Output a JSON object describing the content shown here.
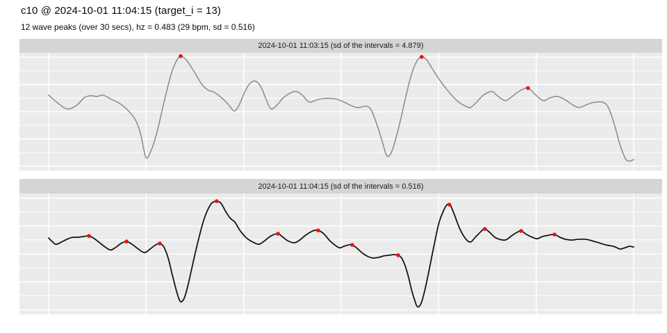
{
  "header": {
    "title": "c10 @ 2024-10-01 11:04:15 (target_i = 13)",
    "subtitle": "12 wave peaks (over 30 secs), hz = 0.483 (29 bpm, sd = 0.516)"
  },
  "colors": {
    "panel_bg": "#ebebeb",
    "strip_bg": "#d5d5d5",
    "grid": "#ffffff",
    "peak_dot": "#ed1111",
    "series_top": "#8f8f8f",
    "series_bottom": "#141414"
  },
  "chart_data": [
    {
      "type": "line",
      "title": "2024-10-01 11:03:15 (sd of the intervals = 4.879)",
      "xlabel": "",
      "ylabel": "",
      "x_unit": "seconds",
      "xlim": [
        0,
        30
      ],
      "ylim": [
        0,
        1
      ],
      "grid": true,
      "legend": false,
      "line_color_key": "series_top",
      "points": [
        [
          0,
          0.641
        ],
        [
          0.36,
          0.588
        ],
        [
          0.93,
          0.524
        ],
        [
          1.43,
          0.553
        ],
        [
          1.82,
          0.618
        ],
        [
          2.14,
          0.635
        ],
        [
          2.49,
          0.629
        ],
        [
          2.78,
          0.641
        ],
        [
          3.21,
          0.606
        ],
        [
          3.63,
          0.571
        ],
        [
          4.1,
          0.506
        ],
        [
          4.49,
          0.418
        ],
        [
          4.74,
          0.294
        ],
        [
          4.99,
          0.112
        ],
        [
          5.27,
          0.176
        ],
        [
          5.56,
          0.329
        ],
        [
          5.91,
          0.576
        ],
        [
          6.27,
          0.812
        ],
        [
          6.55,
          0.929
        ],
        [
          6.77,
          0.971
        ],
        [
          7.05,
          0.941
        ],
        [
          7.41,
          0.853
        ],
        [
          7.87,
          0.729
        ],
        [
          8.19,
          0.682
        ],
        [
          8.48,
          0.665
        ],
        [
          8.91,
          0.612
        ],
        [
          9.26,
          0.553
        ],
        [
          9.51,
          0.506
        ],
        [
          9.76,
          0.553
        ],
        [
          10.05,
          0.665
        ],
        [
          10.33,
          0.741
        ],
        [
          10.62,
          0.759
        ],
        [
          10.9,
          0.706
        ],
        [
          11.15,
          0.606
        ],
        [
          11.4,
          0.524
        ],
        [
          11.69,
          0.553
        ],
        [
          12.04,
          0.618
        ],
        [
          12.4,
          0.659
        ],
        [
          12.72,
          0.671
        ],
        [
          13.04,
          0.635
        ],
        [
          13.36,
          0.582
        ],
        [
          13.75,
          0.6
        ],
        [
          14.11,
          0.612
        ],
        [
          14.46,
          0.612
        ],
        [
          14.79,
          0.606
        ],
        [
          15.14,
          0.582
        ],
        [
          15.5,
          0.553
        ],
        [
          15.85,
          0.535
        ],
        [
          16.07,
          0.541
        ],
        [
          16.32,
          0.547
        ],
        [
          16.53,
          0.518
        ],
        [
          16.74,
          0.435
        ],
        [
          16.99,
          0.312
        ],
        [
          17.21,
          0.188
        ],
        [
          17.35,
          0.124
        ],
        [
          17.53,
          0.141
        ],
        [
          17.74,
          0.235
        ],
        [
          18.03,
          0.418
        ],
        [
          18.31,
          0.624
        ],
        [
          18.6,
          0.812
        ],
        [
          18.88,
          0.929
        ],
        [
          19.13,
          0.965
        ],
        [
          19.38,
          0.941
        ],
        [
          19.67,
          0.865
        ],
        [
          20.02,
          0.776
        ],
        [
          20.31,
          0.712
        ],
        [
          20.66,
          0.641
        ],
        [
          21.02,
          0.582
        ],
        [
          21.38,
          0.547
        ],
        [
          21.63,
          0.535
        ],
        [
          21.95,
          0.582
        ],
        [
          22.3,
          0.641
        ],
        [
          22.73,
          0.671
        ],
        [
          23.01,
          0.635
        ],
        [
          23.41,
          0.594
        ],
        [
          23.73,
          0.624
        ],
        [
          24.15,
          0.676
        ],
        [
          24.58,
          0.7
        ],
        [
          24.94,
          0.647
        ],
        [
          25.36,
          0.594
        ],
        [
          25.72,
          0.618
        ],
        [
          26.11,
          0.629
        ],
        [
          26.5,
          0.6
        ],
        [
          26.86,
          0.559
        ],
        [
          27.18,
          0.535
        ],
        [
          27.5,
          0.553
        ],
        [
          27.86,
          0.576
        ],
        [
          28.14,
          0.582
        ],
        [
          28.39,
          0.582
        ],
        [
          28.64,
          0.553
        ],
        [
          28.86,
          0.471
        ],
        [
          29.07,
          0.359
        ],
        [
          29.28,
          0.229
        ],
        [
          29.5,
          0.129
        ],
        [
          29.64,
          0.088
        ],
        [
          29.82,
          0.082
        ],
        [
          30,
          0.094
        ]
      ],
      "peaks": [
        [
          6.77,
          0.971
        ],
        [
          19.13,
          0.965
        ],
        [
          24.58,
          0.7
        ]
      ]
    },
    {
      "type": "line",
      "title": "2024-10-01 11:04:15 (sd of the intervals = 0.516)",
      "xlabel": "",
      "ylabel": "",
      "x_unit": "seconds",
      "xlim": [
        0,
        30
      ],
      "ylim": [
        0,
        1
      ],
      "grid": true,
      "legend": false,
      "line_color_key": "series_bottom",
      "points": [
        [
          0,
          0.632
        ],
        [
          0.18,
          0.603
        ],
        [
          0.39,
          0.58
        ],
        [
          0.71,
          0.603
        ],
        [
          1,
          0.626
        ],
        [
          1.25,
          0.638
        ],
        [
          1.5,
          0.638
        ],
        [
          1.78,
          0.644
        ],
        [
          2.07,
          0.649
        ],
        [
          2.35,
          0.626
        ],
        [
          2.71,
          0.58
        ],
        [
          3.14,
          0.534
        ],
        [
          3.42,
          0.552
        ],
        [
          3.71,
          0.586
        ],
        [
          3.99,
          0.603
        ],
        [
          4.28,
          0.58
        ],
        [
          4.6,
          0.54
        ],
        [
          4.92,
          0.511
        ],
        [
          5.2,
          0.54
        ],
        [
          5.49,
          0.575
        ],
        [
          5.7,
          0.586
        ],
        [
          5.91,
          0.557
        ],
        [
          6.13,
          0.466
        ],
        [
          6.34,
          0.328
        ],
        [
          6.56,
          0.19
        ],
        [
          6.7,
          0.121
        ],
        [
          6.8,
          0.103
        ],
        [
          6.95,
          0.132
        ],
        [
          7.13,
          0.23
        ],
        [
          7.37,
          0.402
        ],
        [
          7.66,
          0.603
        ],
        [
          7.98,
          0.793
        ],
        [
          8.3,
          0.908
        ],
        [
          8.55,
          0.937
        ],
        [
          8.66,
          0.934
        ],
        [
          8.84,
          0.92
        ],
        [
          9.08,
          0.851
        ],
        [
          9.33,
          0.793
        ],
        [
          9.55,
          0.764
        ],
        [
          9.83,
          0.69
        ],
        [
          10.19,
          0.626
        ],
        [
          10.55,
          0.592
        ],
        [
          10.79,
          0.58
        ],
        [
          11.08,
          0.609
        ],
        [
          11.4,
          0.649
        ],
        [
          11.76,
          0.667
        ],
        [
          11.97,
          0.644
        ],
        [
          12.26,
          0.609
        ],
        [
          12.58,
          0.592
        ],
        [
          12.83,
          0.609
        ],
        [
          13.18,
          0.655
        ],
        [
          13.54,
          0.69
        ],
        [
          13.82,
          0.695
        ],
        [
          14.11,
          0.667
        ],
        [
          14.46,
          0.603
        ],
        [
          14.89,
          0.552
        ],
        [
          15.14,
          0.563
        ],
        [
          15.39,
          0.575
        ],
        [
          15.57,
          0.575
        ],
        [
          15.82,
          0.546
        ],
        [
          16.1,
          0.506
        ],
        [
          16.39,
          0.477
        ],
        [
          16.64,
          0.466
        ],
        [
          16.92,
          0.471
        ],
        [
          17.17,
          0.483
        ],
        [
          17.46,
          0.489
        ],
        [
          17.71,
          0.494
        ],
        [
          17.92,
          0.489
        ],
        [
          18.1,
          0.466
        ],
        [
          18.28,
          0.402
        ],
        [
          18.46,
          0.305
        ],
        [
          18.63,
          0.19
        ],
        [
          18.81,
          0.098
        ],
        [
          18.88,
          0.069
        ],
        [
          18.99,
          0.063
        ],
        [
          19.13,
          0.103
        ],
        [
          19.31,
          0.213
        ],
        [
          19.52,
          0.374
        ],
        [
          19.77,
          0.575
        ],
        [
          20.02,
          0.759
        ],
        [
          20.31,
          0.879
        ],
        [
          20.48,
          0.914
        ],
        [
          20.59,
          0.908
        ],
        [
          20.8,
          0.828
        ],
        [
          21.09,
          0.707
        ],
        [
          21.38,
          0.626
        ],
        [
          21.63,
          0.598
        ],
        [
          21.88,
          0.638
        ],
        [
          22.16,
          0.684
        ],
        [
          22.37,
          0.707
        ],
        [
          22.66,
          0.672
        ],
        [
          22.94,
          0.632
        ],
        [
          23.41,
          0.615
        ],
        [
          23.73,
          0.649
        ],
        [
          24.01,
          0.678
        ],
        [
          24.23,
          0.69
        ],
        [
          24.51,
          0.661
        ],
        [
          24.8,
          0.638
        ],
        [
          25.05,
          0.626
        ],
        [
          25.33,
          0.644
        ],
        [
          25.65,
          0.655
        ],
        [
          25.94,
          0.661
        ],
        [
          26.22,
          0.638
        ],
        [
          26.5,
          0.621
        ],
        [
          26.83,
          0.615
        ],
        [
          27.15,
          0.621
        ],
        [
          27.54,
          0.621
        ],
        [
          27.86,
          0.609
        ],
        [
          28.22,
          0.592
        ],
        [
          28.57,
          0.575
        ],
        [
          28.96,
          0.563
        ],
        [
          29.21,
          0.546
        ],
        [
          29.32,
          0.54
        ],
        [
          29.57,
          0.552
        ],
        [
          29.78,
          0.563
        ],
        [
          30,
          0.557
        ]
      ],
      "peaks": [
        [
          2.07,
          0.649
        ],
        [
          3.99,
          0.603
        ],
        [
          5.7,
          0.586
        ],
        [
          8.62,
          0.937
        ],
        [
          11.76,
          0.667
        ],
        [
          13.82,
          0.695
        ],
        [
          15.57,
          0.575
        ],
        [
          17.92,
          0.489
        ],
        [
          20.55,
          0.908
        ],
        [
          22.37,
          0.707
        ],
        [
          24.23,
          0.69
        ],
        [
          25.94,
          0.661
        ]
      ]
    }
  ]
}
